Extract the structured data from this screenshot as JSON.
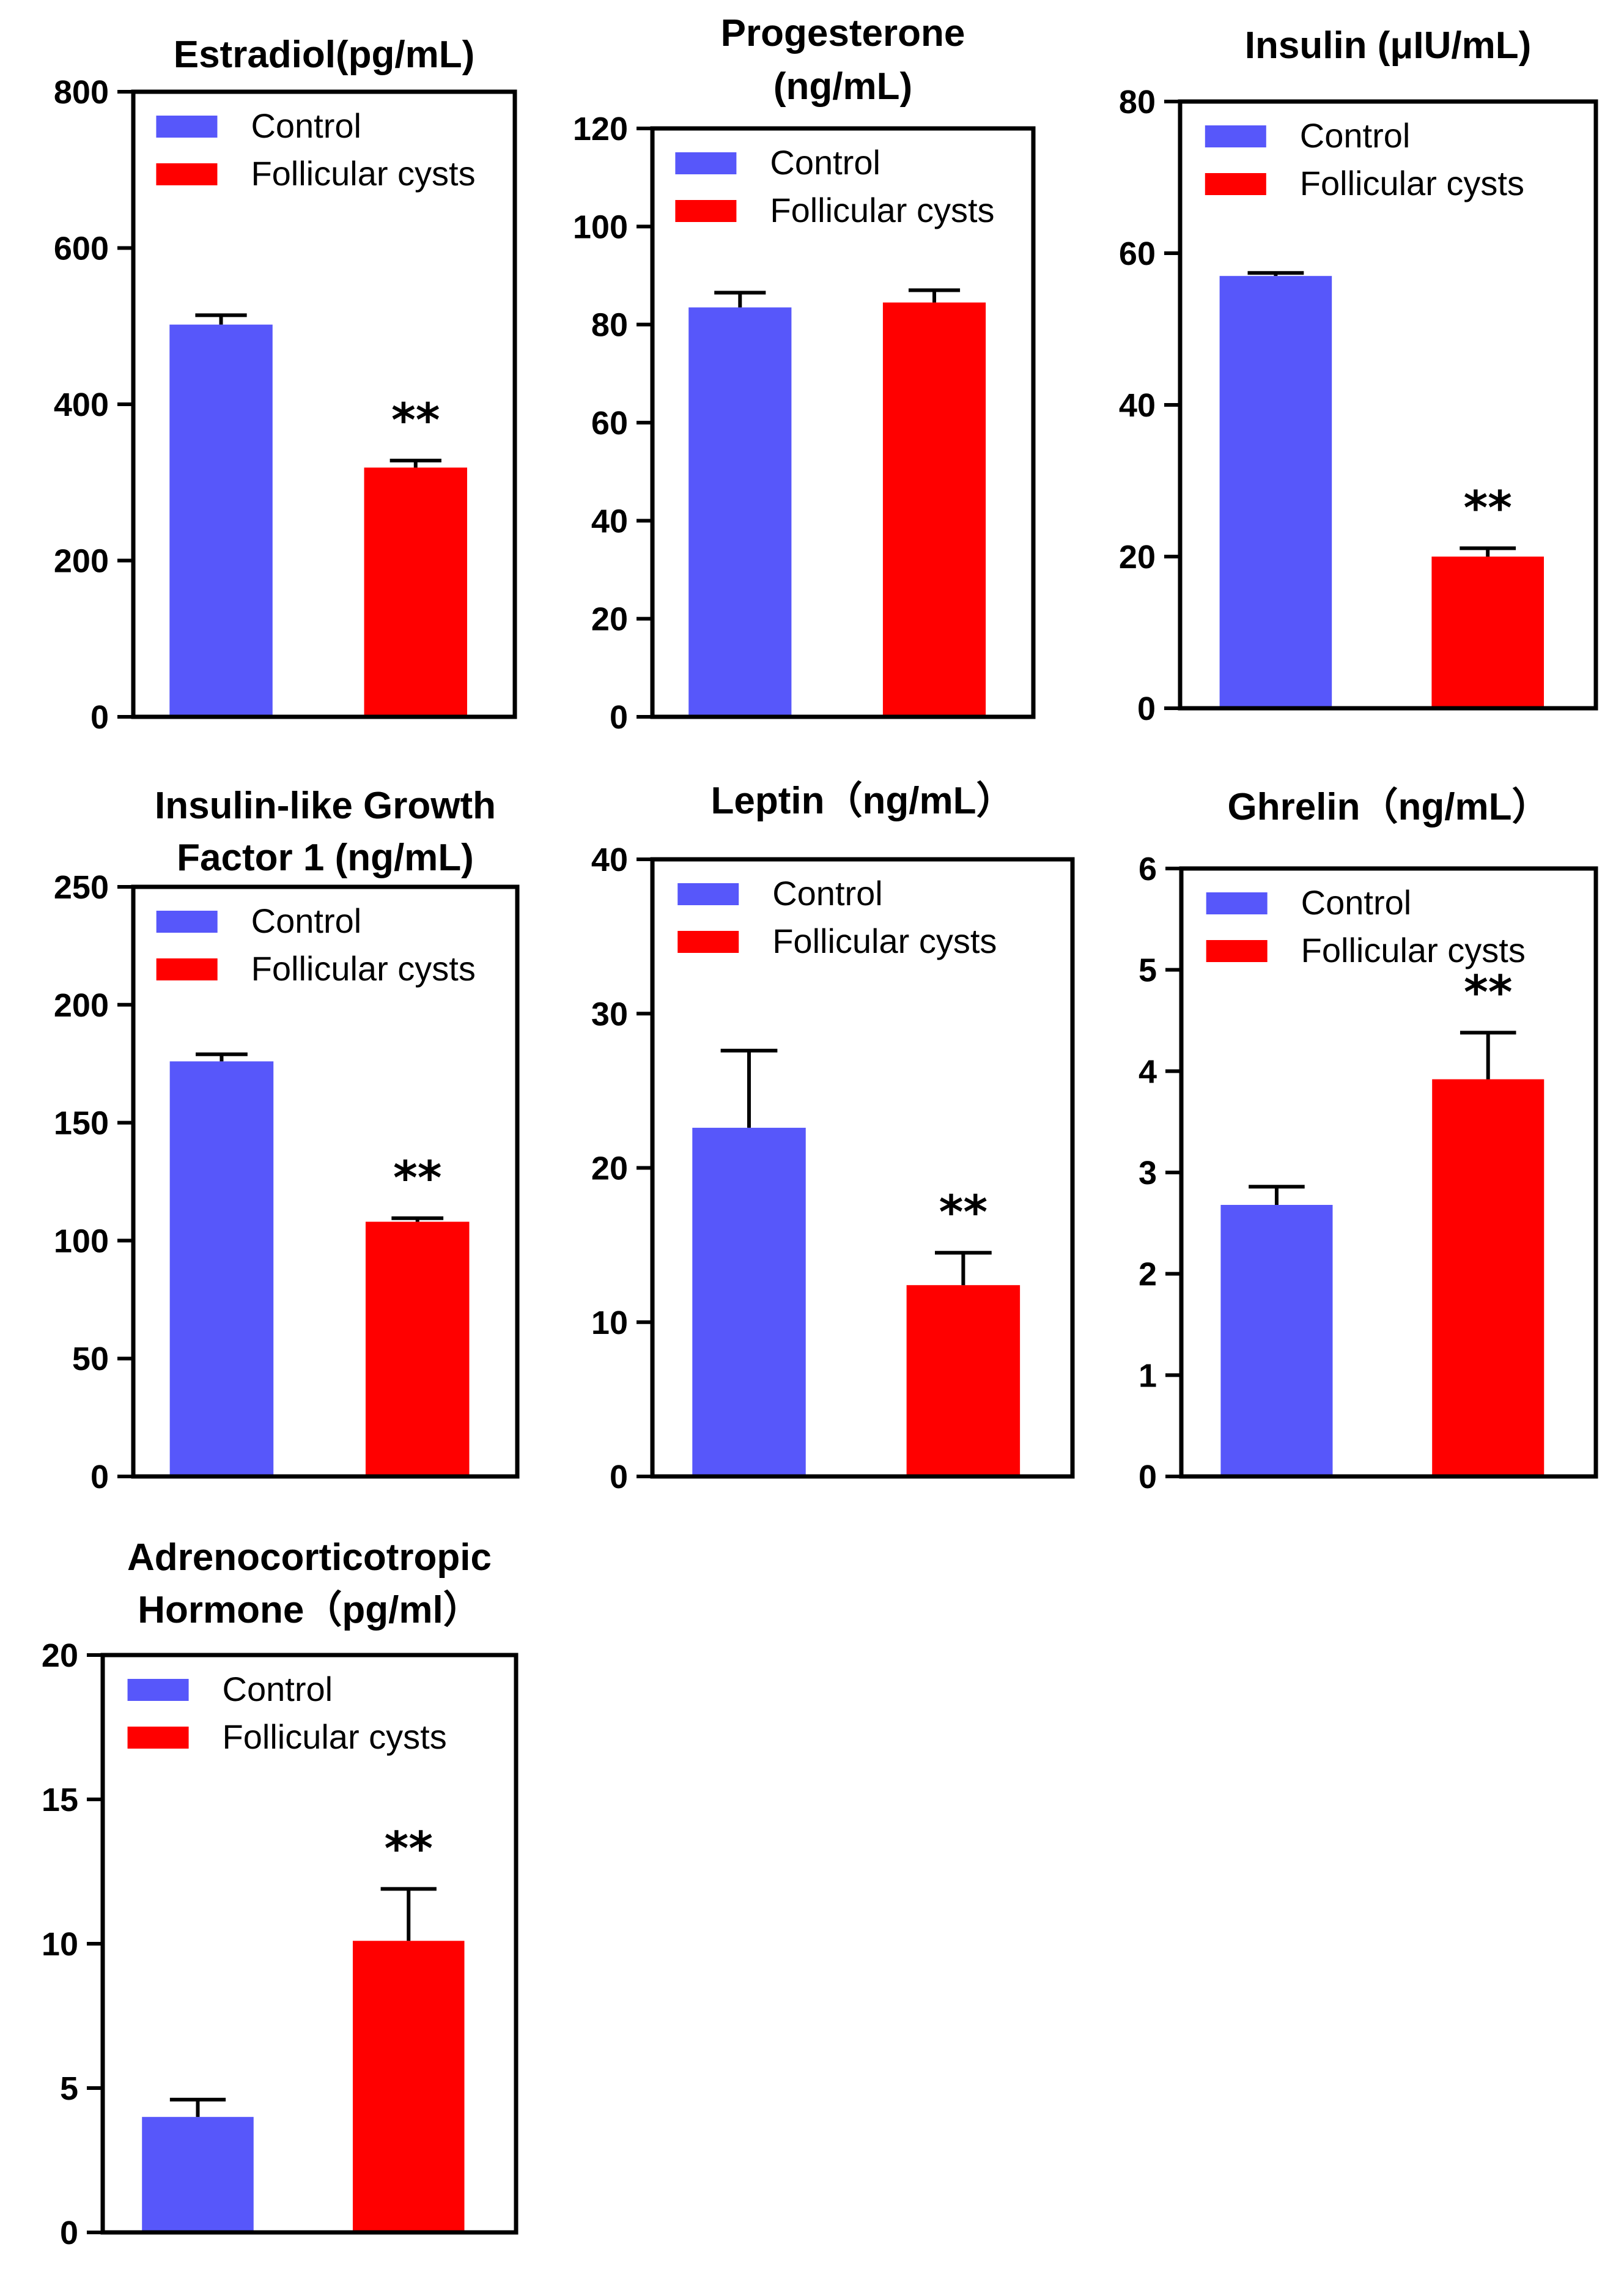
{
  "figure": {
    "legend": {
      "control_label": "Control",
      "treatment_label": "Follicular cysts"
    },
    "colors": {
      "control": "#5757FA",
      "treatment": "#FF0000",
      "axis": "#000000"
    }
  },
  "chart_data": [
    {
      "type": "bar",
      "title_lines": [
        "Estradiol(pg/mL)"
      ],
      "categories": [
        "Control",
        "Follicular cysts"
      ],
      "values": [
        502,
        319
      ],
      "errors": [
        12,
        9
      ],
      "significance": [
        "",
        "**"
      ],
      "ylim": [
        0,
        800
      ],
      "yticks": [
        "0",
        "200",
        "400",
        "600",
        "800"
      ],
      "legend_position": "top-right"
    },
    {
      "type": "bar",
      "title_lines": [
        "Progesterone",
        "(ng/mL)"
      ],
      "categories": [
        "Control",
        "Follicular cysts"
      ],
      "values": [
        83.5,
        84.5
      ],
      "errors": [
        3,
        2.5
      ],
      "significance": [
        "",
        ""
      ],
      "ylim": [
        0,
        120
      ],
      "yticks": [
        "0",
        "20",
        "40",
        "60",
        "80",
        "100",
        "120"
      ],
      "legend_position": "top-right"
    },
    {
      "type": "bar",
      "title_lines": [
        "Insulin (μIU/mL)"
      ],
      "categories": [
        "Control",
        "Follicular cysts"
      ],
      "values": [
        57,
        20
      ],
      "errors": [
        0.4,
        1.1
      ],
      "significance": [
        "",
        "**"
      ],
      "ylim": [
        0,
        80
      ],
      "yticks": [
        "0",
        "20",
        "40",
        "60",
        "80"
      ],
      "legend_position": "top-right"
    },
    {
      "type": "bar",
      "title_lines": [
        "Insulin-like Growth",
        "Factor 1 (ng/mL)"
      ],
      "categories": [
        "Control",
        "Follicular cysts"
      ],
      "values": [
        176,
        108
      ],
      "errors": [
        3,
        1.5
      ],
      "significance": [
        "",
        "**"
      ],
      "ylim": [
        0,
        250
      ],
      "yticks": [
        "0",
        "50",
        "100",
        "150",
        "200",
        "250"
      ],
      "legend_position": "top-right"
    },
    {
      "type": "bar",
      "title_lines": [
        "Leptin（ng/mL）"
      ],
      "categories": [
        "Control",
        "Follicular cysts"
      ],
      "values": [
        22.6,
        12.4
      ],
      "errors": [
        5.0,
        2.1
      ],
      "significance": [
        "",
        "**"
      ],
      "ylim": [
        0,
        40
      ],
      "yticks": [
        "0",
        "10",
        "20",
        "30",
        "40"
      ],
      "legend_position": "top-right"
    },
    {
      "type": "bar",
      "title_lines": [
        "Ghrelin（ng/mL）"
      ],
      "categories": [
        "Control",
        "Follicular cysts"
      ],
      "values": [
        2.68,
        3.92
      ],
      "errors": [
        0.18,
        0.46
      ],
      "significance": [
        "",
        "**"
      ],
      "ylim": [
        0,
        6
      ],
      "yticks": [
        "0",
        "1",
        "2",
        "3",
        "4",
        "5",
        "6"
      ],
      "legend_position": "top-right"
    },
    {
      "type": "bar",
      "title_lines": [
        "Adrenocorticotropic",
        "Hormone（pg/ml）"
      ],
      "categories": [
        "Control",
        "Follicular cysts"
      ],
      "values": [
        4.0,
        10.1
      ],
      "errors": [
        0.6,
        1.8
      ],
      "significance": [
        "",
        "**"
      ],
      "ylim": [
        0,
        20
      ],
      "yticks": [
        "0",
        "5",
        "10",
        "15",
        "20"
      ],
      "legend_position": "top-right"
    }
  ]
}
